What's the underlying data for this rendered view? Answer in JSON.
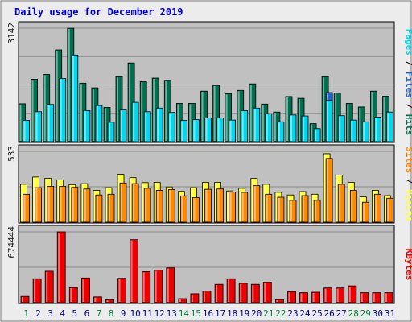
{
  "chart_data": {
    "type": "bar",
    "title": "Daily usage for December 2019",
    "categories": [
      "1",
      "2",
      "3",
      "4",
      "5",
      "6",
      "7",
      "8",
      "9",
      "10",
      "11",
      "12",
      "13",
      "14",
      "15",
      "16",
      "17",
      "18",
      "19",
      "20",
      "21",
      "22",
      "23",
      "24",
      "25",
      "26",
      "27",
      "28",
      "29",
      "30",
      "31"
    ],
    "weekend_days": [
      "1",
      "7",
      "8",
      "14",
      "15",
      "21",
      "22",
      "28",
      "29"
    ],
    "panels": [
      {
        "name": "top",
        "ymax_label": "3142",
        "ylim": [
          0,
          3142
        ],
        "legend": [
          "Pages",
          "Files",
          "Hits"
        ],
        "series": [
          {
            "name": "Hits",
            "color": "#006f4f",
            "values": [
              1050,
              1730,
              1860,
              2540,
              3140,
              1620,
              1490,
              950,
              1800,
              2180,
              1660,
              1760,
              1700,
              1060,
              1060,
              1400,
              1560,
              1330,
              1420,
              1600,
              1040,
              820,
              1250,
              1200,
              500,
              1800,
              1350,
              1060,
              960,
              1400,
              1260
            ]
          },
          {
            "name": "Files",
            "color": "#2060cc",
            "values": [
              0,
              0,
              0,
              0,
              0,
              0,
              0,
              0,
              0,
              0,
              0,
              0,
              0,
              0,
              0,
              0,
              0,
              0,
              0,
              0,
              0,
              0,
              0,
              0,
              0,
              1360,
              0,
              0,
              0,
              0,
              0
            ]
          },
          {
            "name": "Pages",
            "color": "#00d8f0",
            "values": [
              590,
              830,
              1030,
              1750,
              2400,
              860,
              1000,
              540,
              880,
              1090,
              830,
              930,
              810,
              590,
              610,
              660,
              660,
              600,
              860,
              930,
              770,
              550,
              740,
              710,
              360,
              1140,
              720,
              600,
              550,
              680,
              820
            ]
          }
        ]
      },
      {
        "name": "middle",
        "ymax_label": "533",
        "ylim": [
          0,
          533
        ],
        "legend": [
          "Sites",
          "Visits"
        ],
        "series": [
          {
            "name": "Visits",
            "color": "#ffff33",
            "values": [
              285,
              340,
              330,
              318,
              283,
              290,
              240,
              260,
              360,
              335,
              298,
              300,
              265,
              232,
              260,
              300,
              300,
              235,
              255,
              330,
              285,
              225,
              205,
              230,
              210,
              515,
              355,
              300,
              190,
              240,
              200
            ]
          },
          {
            "name": "Sites",
            "color": "#ff8800",
            "values": [
              210,
              260,
              270,
              270,
              262,
              250,
              205,
              210,
              295,
              290,
              255,
              240,
              245,
              198,
              185,
              248,
              250,
              228,
              225,
              275,
              210,
              188,
              165,
              200,
              165,
              480,
              285,
              240,
              150,
              210,
              180
            ]
          }
        ]
      },
      {
        "name": "bottom",
        "ymax_label": "674444",
        "ylim": [
          0,
          674444
        ],
        "legend": [
          "KBytes"
        ],
        "series": [
          {
            "name": "KBytes",
            "color": "#ee0000",
            "values": [
              60000,
              228000,
              300000,
              674444,
              145000,
              235000,
              55000,
              28000,
              232000,
              600000,
              295000,
              310000,
              332000,
              38000,
              85000,
              110000,
              175000,
              228000,
              185000,
              175000,
              195000,
              30000,
              105000,
              95000,
              100000,
              140000,
              140000,
              160000,
              95000,
              95000,
              95000
            ]
          }
        ]
      }
    ]
  }
}
